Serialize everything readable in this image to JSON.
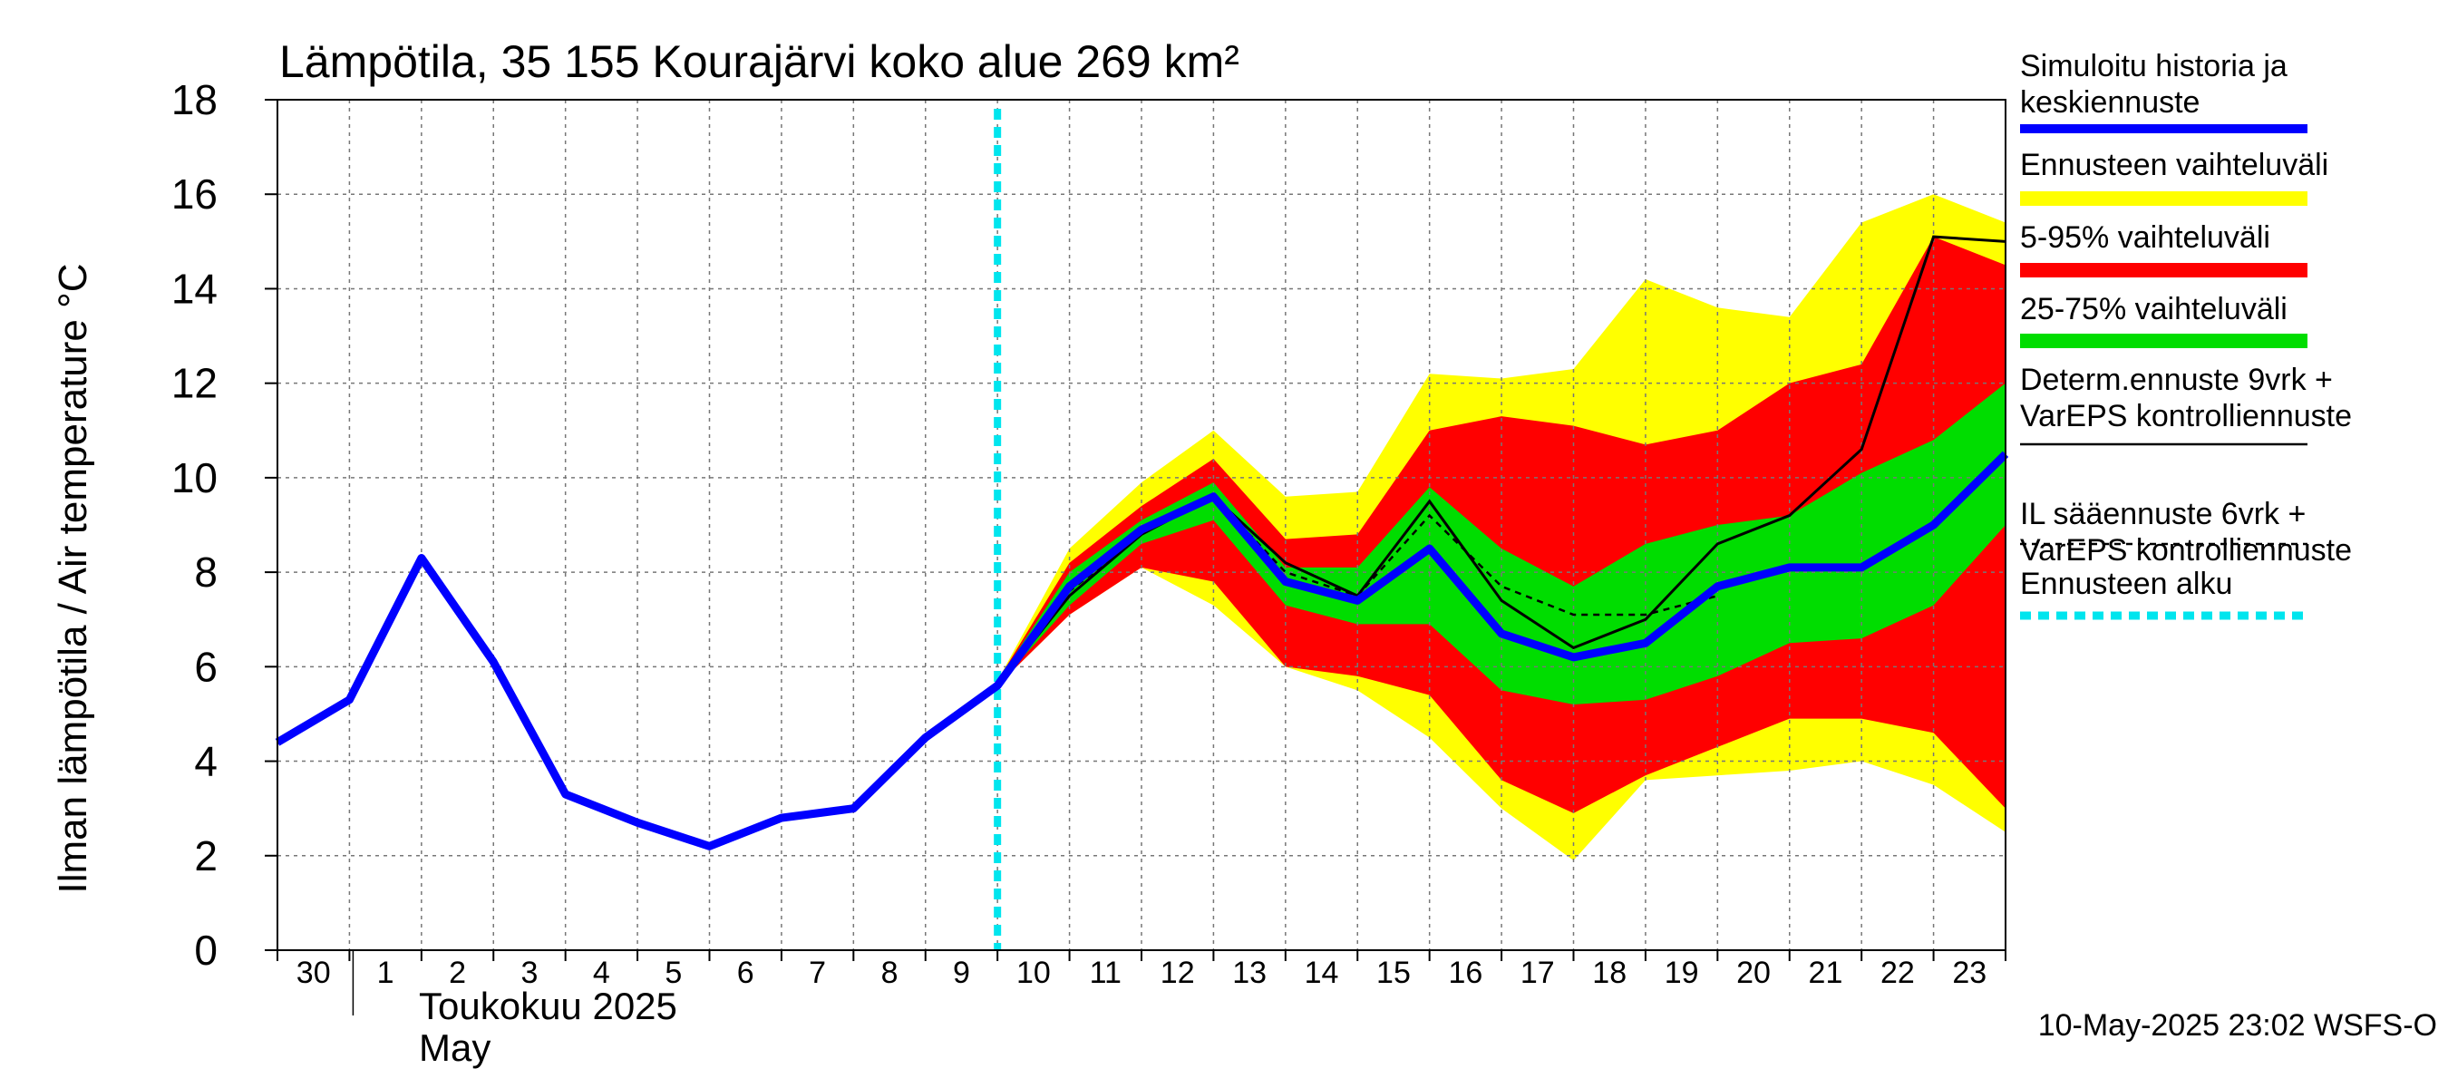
{
  "chart_data": {
    "type": "area",
    "title": "Lämpötila, 35 155 Kourajärvi koko alue 269 km²",
    "ylabel": "Ilman lämpötila / Air temperature    °C",
    "ylim": [
      0,
      18
    ],
    "yticks": [
      "0",
      "2",
      "4",
      "6",
      "8",
      "10",
      "12",
      "14",
      "16",
      "18"
    ],
    "xlim": [
      0,
      24
    ],
    "xticks": [
      "30",
      "1",
      "2",
      "3",
      "4",
      "5",
      "6",
      "7",
      "8",
      "9",
      "10",
      "11",
      "12",
      "13",
      "14",
      "15",
      "16",
      "17",
      "18",
      "19",
      "20",
      "21",
      "22",
      "23"
    ],
    "xlabel_month": "Toukokuu  2025",
    "xlabel_month_en": "May",
    "footer": "10-May-2025 23:02 WSFS-O",
    "forecast_start_x": 10,
    "legend_position": "right",
    "legend": [
      {
        "key": "history",
        "label": [
          "Simuloitu historia ja",
          "keskiennuste"
        ],
        "color": "#0000ff",
        "style": "thick"
      },
      {
        "key": "full_range",
        "label": [
          "Ennusteen vaihteluväli"
        ],
        "color": "#ffff00",
        "style": "band"
      },
      {
        "key": "p5_95",
        "label": [
          "5-95% vaihteluväli"
        ],
        "color": "#ff0000",
        "style": "band"
      },
      {
        "key": "p25_75",
        "label": [
          "25-75% vaihteluväli"
        ],
        "color": "#00dd00",
        "style": "band"
      },
      {
        "key": "determ",
        "label": [
          "Determ.ennuste 9vrk +",
          "VarEPS kontrolliennuste"
        ],
        "color": "#000000",
        "style": "thin"
      },
      {
        "key": "il",
        "label": [
          "IL sääennuste 6vrk  +",
          "  VarEPS kontrolliennuste"
        ],
        "color": "#000000",
        "style": "dashed"
      },
      {
        "key": "start",
        "label": [
          "Ennusteen alku"
        ],
        "color": "#00e5ee",
        "style": "cyandash"
      }
    ],
    "series": [
      {
        "key": "full_range",
        "x": [
          10,
          11,
          12,
          13,
          14,
          15,
          16,
          17,
          18,
          19,
          20,
          21,
          22,
          23,
          24
        ],
        "lower": [
          5.6,
          7.1,
          8.1,
          7.3,
          6.0,
          5.5,
          4.5,
          3.0,
          1.9,
          3.6,
          3.7,
          3.8,
          4.0,
          3.5,
          2.5
        ],
        "upper": [
          5.7,
          8.5,
          9.9,
          11.0,
          9.6,
          9.7,
          12.2,
          12.1,
          12.3,
          14.2,
          13.6,
          13.4,
          15.4,
          16.0,
          15.4
        ]
      },
      {
        "key": "p5_95",
        "x": [
          10,
          11,
          12,
          13,
          14,
          15,
          16,
          17,
          18,
          19,
          20,
          21,
          22,
          23,
          24
        ],
        "lower": [
          5.6,
          7.1,
          8.1,
          7.8,
          6.0,
          5.8,
          5.4,
          3.6,
          2.9,
          3.7,
          4.3,
          4.9,
          4.9,
          4.6,
          3.0
        ],
        "upper": [
          5.7,
          8.2,
          9.4,
          10.4,
          8.7,
          8.8,
          11.0,
          11.3,
          11.1,
          10.7,
          11.0,
          12.0,
          12.4,
          15.1,
          14.5
        ]
      },
      {
        "key": "p25_75",
        "x": [
          10,
          11,
          12,
          13,
          14,
          15,
          16,
          17,
          18,
          19,
          20,
          21,
          22,
          23,
          24
        ],
        "lower": [
          5.6,
          7.3,
          8.6,
          9.1,
          7.3,
          6.9,
          6.9,
          5.5,
          5.2,
          5.3,
          5.8,
          6.5,
          6.6,
          7.3,
          9.0
        ],
        "upper": [
          5.7,
          8.0,
          9.1,
          9.9,
          8.1,
          8.1,
          9.8,
          8.5,
          7.7,
          8.6,
          9.0,
          9.2,
          10.1,
          10.8,
          12.0
        ]
      },
      {
        "key": "history",
        "x": [
          0,
          1,
          2,
          3,
          4,
          5,
          6,
          7,
          8,
          9,
          10,
          11,
          12,
          13,
          14,
          15,
          16,
          17,
          18,
          19,
          20,
          21,
          22,
          23,
          24
        ],
        "y": [
          4.4,
          5.3,
          8.3,
          6.1,
          3.3,
          2.7,
          2.2,
          2.8,
          3.0,
          4.5,
          5.6,
          7.7,
          8.9,
          9.6,
          7.8,
          7.4,
          8.5,
          6.7,
          6.2,
          6.5,
          7.7,
          8.1,
          8.1,
          9.0,
          10.5
        ]
      },
      {
        "key": "determ",
        "x": [
          10,
          11,
          12,
          13,
          14,
          15,
          16,
          17,
          18,
          19,
          20,
          21,
          22,
          23,
          24
        ],
        "y": [
          5.6,
          7.5,
          8.8,
          9.6,
          8.2,
          7.5,
          9.5,
          7.4,
          6.4,
          7.0,
          8.6,
          9.2,
          10.6,
          15.1,
          15.0
        ]
      },
      {
        "key": "il",
        "x": [
          10,
          11,
          12,
          13,
          14,
          15,
          16,
          17,
          18,
          19,
          20
        ],
        "y": [
          5.6,
          7.6,
          8.8,
          9.6,
          8.0,
          7.5,
          9.2,
          7.7,
          7.1,
          7.1,
          7.5
        ]
      }
    ]
  }
}
